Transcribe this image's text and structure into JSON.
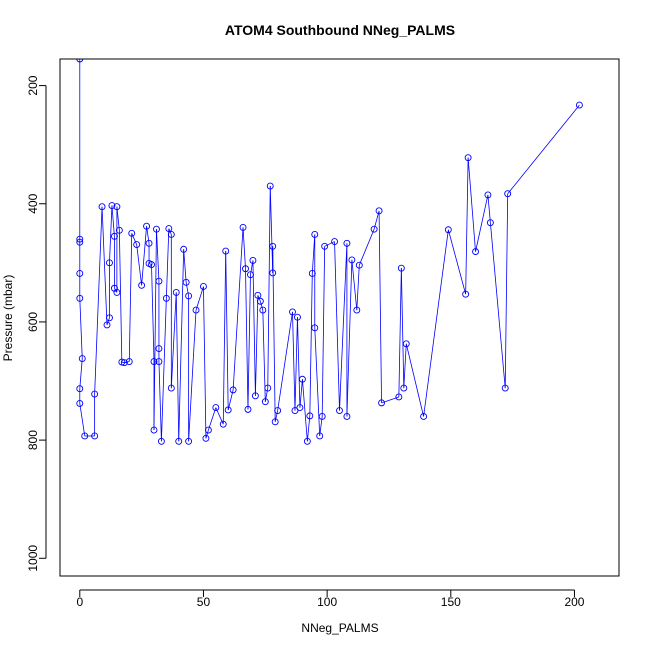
{
  "chart_data": {
    "type": "scatter",
    "title": "ATOM4 Southbound NNeg_PALMS",
    "xlabel": "NNeg_PALMS",
    "ylabel": "Pressure (mbar)",
    "xlim": [
      -8,
      218
    ],
    "ylim": [
      1030,
      155
    ],
    "y_reversed": true,
    "x_ticks": [
      0,
      50,
      100,
      150,
      200
    ],
    "y_ticks": [
      200,
      400,
      600,
      800,
      1000
    ],
    "series": [
      {
        "marker": "open-circle",
        "connected": true,
        "color": "#0000ff",
        "points": [
          [
            0,
            155
          ],
          [
            0,
            460
          ],
          [
            0,
            465
          ],
          [
            0,
            518
          ],
          [
            0,
            560
          ],
          [
            1,
            662
          ],
          [
            0,
            713
          ],
          [
            0,
            738
          ],
          [
            2,
            793
          ],
          [
            6,
            793
          ],
          [
            6,
            722
          ],
          [
            9,
            405
          ],
          [
            11,
            605
          ],
          [
            12,
            593
          ],
          [
            12,
            500
          ],
          [
            13,
            403
          ],
          [
            14,
            455
          ],
          [
            14,
            543
          ],
          [
            15,
            550
          ],
          [
            15,
            405
          ],
          [
            16,
            445
          ],
          [
            17,
            668
          ],
          [
            18,
            669
          ],
          [
            20,
            667
          ],
          [
            21,
            450
          ],
          [
            23,
            469
          ],
          [
            25,
            538
          ],
          [
            27,
            438
          ],
          [
            28,
            467
          ],
          [
            28,
            501
          ],
          [
            29,
            503
          ],
          [
            30,
            667
          ],
          [
            30,
            783
          ],
          [
            31,
            443
          ],
          [
            32,
            531
          ],
          [
            32,
            645
          ],
          [
            32,
            667
          ],
          [
            33,
            802
          ],
          [
            35,
            560
          ],
          [
            36,
            442
          ],
          [
            37,
            452
          ],
          [
            37,
            712
          ],
          [
            39,
            550
          ],
          [
            40,
            802
          ],
          [
            42,
            477
          ],
          [
            43,
            533
          ],
          [
            44,
            556
          ],
          [
            44,
            802
          ],
          [
            47,
            580
          ],
          [
            50,
            540
          ],
          [
            51,
            797
          ],
          [
            52,
            783
          ],
          [
            55,
            745
          ],
          [
            58,
            773
          ],
          [
            59,
            480
          ],
          [
            60,
            749
          ],
          [
            62,
            715
          ],
          [
            66,
            440
          ],
          [
            67,
            510
          ],
          [
            68,
            748
          ],
          [
            69,
            520
          ],
          [
            70,
            496
          ],
          [
            71,
            725
          ],
          [
            72,
            555
          ],
          [
            73,
            565
          ],
          [
            74,
            580
          ],
          [
            75,
            735
          ],
          [
            76,
            712
          ],
          [
            77,
            370
          ],
          [
            78,
            517
          ],
          [
            78,
            472
          ],
          [
            79,
            769
          ],
          [
            80,
            750
          ],
          [
            86,
            583
          ],
          [
            87,
            750
          ],
          [
            88,
            592
          ],
          [
            89,
            745
          ],
          [
            90,
            697
          ],
          [
            92,
            802
          ],
          [
            93,
            759
          ],
          [
            94,
            518
          ],
          [
            95,
            452
          ],
          [
            95,
            610
          ],
          [
            97,
            793
          ],
          [
            98,
            760
          ],
          [
            99,
            472
          ],
          [
            103,
            464
          ],
          [
            105,
            750
          ],
          [
            108,
            467
          ],
          [
            108,
            760
          ],
          [
            110,
            495
          ],
          [
            112,
            580
          ],
          [
            113,
            504
          ],
          [
            119,
            443
          ],
          [
            121,
            412
          ],
          [
            122,
            737
          ],
          [
            129,
            727
          ],
          [
            130,
            509
          ],
          [
            131,
            712
          ],
          [
            132,
            637
          ],
          [
            139,
            760
          ],
          [
            149,
            444
          ],
          [
            156,
            553
          ],
          [
            157,
            322
          ],
          [
            160,
            481
          ],
          [
            165,
            385
          ],
          [
            166,
            432
          ],
          [
            172,
            712
          ],
          [
            173,
            383
          ],
          [
            202,
            233
          ]
        ]
      }
    ]
  }
}
